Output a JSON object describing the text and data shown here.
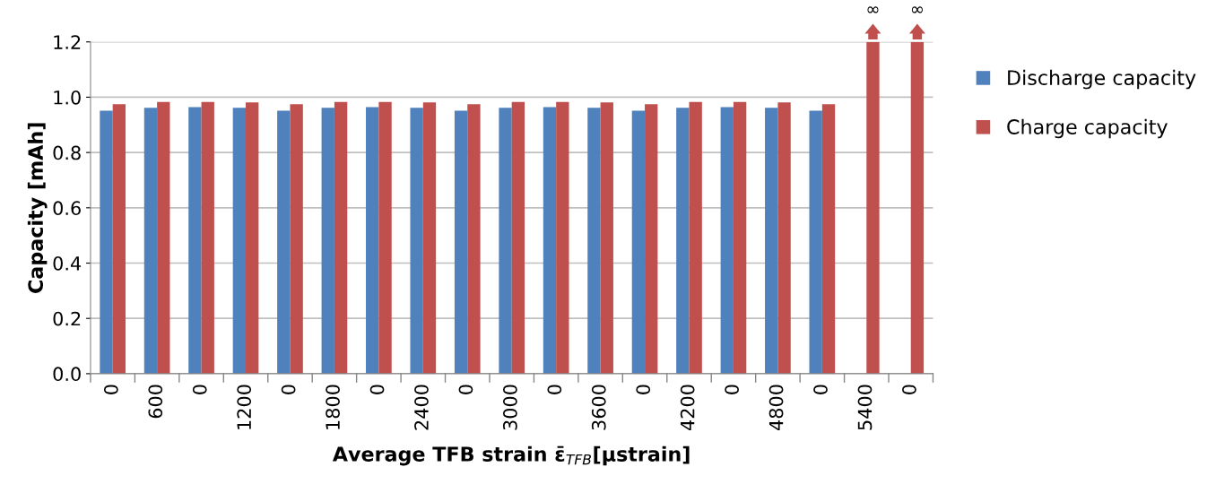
{
  "chart_data": {
    "type": "bar",
    "xlabel": "Average TFB strain ε̄$_{TFB}$[µstrain]",
    "ylabel": "Capacity [mAh]",
    "categories": [
      "0",
      "600",
      "0",
      "1200",
      "0",
      "1800",
      "0",
      "2400",
      "0",
      "3000",
      "0",
      "3600",
      "0",
      "4200",
      "0",
      "4800",
      "0",
      "5400",
      "0"
    ],
    "series": [
      {
        "name": "Discharge capacity",
        "color": "#4f81bd",
        "values": [
          0.951,
          0.962,
          0.964,
          0.962,
          0.951,
          0.962,
          0.964,
          0.962,
          0.951,
          0.962,
          0.964,
          0.962,
          0.951,
          0.962,
          0.964,
          0.962,
          0.951,
          null,
          null
        ]
      },
      {
        "name": "Charge capacity",
        "color": "#c0504d",
        "values": [
          0.975,
          0.983,
          0.983,
          0.981,
          0.975,
          0.983,
          0.983,
          0.981,
          0.975,
          0.983,
          0.983,
          0.981,
          0.975,
          0.983,
          0.983,
          0.981,
          0.975,
          1.2,
          1.2
        ],
        "value_labels": [
          null,
          null,
          null,
          null,
          null,
          null,
          null,
          null,
          null,
          null,
          null,
          null,
          null,
          null,
          null,
          null,
          null,
          "∞",
          "∞"
        ]
      }
    ],
    "ylim": [
      0,
      1.2
    ],
    "yticks": [
      {
        "value": 0,
        "label": "0.0"
      },
      {
        "value": 0.2,
        "label": "0.2"
      },
      {
        "value": 0.4,
        "label": "0.4"
      },
      {
        "value": 0.6,
        "label": "0.6"
      },
      {
        "value": 0.8,
        "label": "0.8"
      },
      {
        "value": 1.0,
        "label": "1.0"
      },
      {
        "value": 1.2,
        "label": "1.2"
      }
    ],
    "grid": "y",
    "legend": "right"
  }
}
